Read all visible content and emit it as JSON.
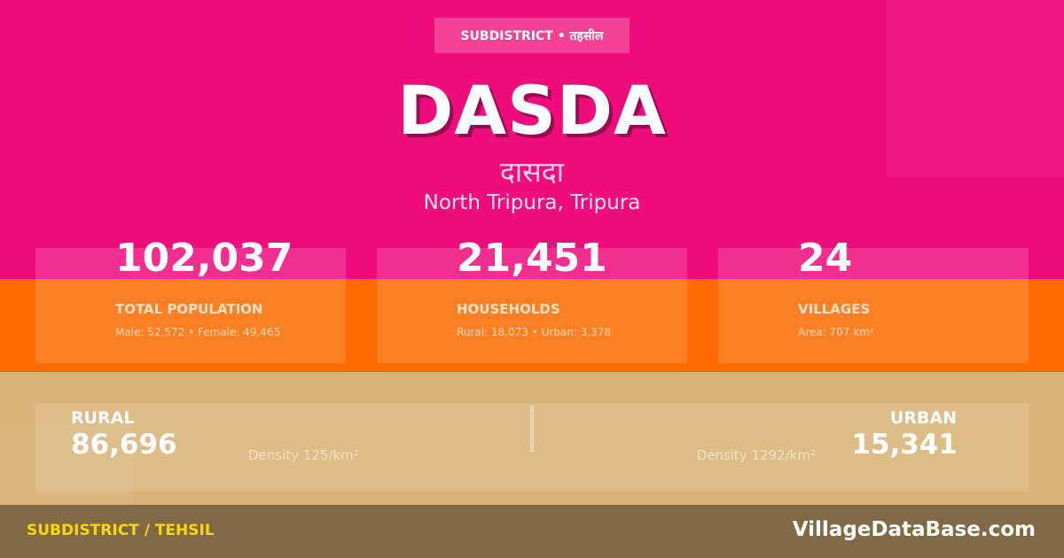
{
  "badge": "SUBDISTRICT • तहसील",
  "name": "DASDA",
  "name_hindi": "दासदा",
  "location": "North Tripura, Tripura",
  "stats": [
    {
      "value": "102,037",
      "label": "TOTAL POPULATION",
      "sub": "Male: 52,572 • Female: 49,465"
    },
    {
      "value": "21,451",
      "label": "HOUSEHOLDS",
      "sub": "Rural: 18,073 • Urban: 3,378"
    },
    {
      "value": "24",
      "label": "VILLAGES",
      "sub": "Area: 707 km²"
    }
  ],
  "rural": {
    "label": "RURAL",
    "value": "86,696",
    "density": "Density 125/km²"
  },
  "urban": {
    "label": "URBAN",
    "value": "15,341",
    "density": "Density 1292/km²"
  },
  "footer": {
    "type": "SUBDISTRICT / TEHSIL",
    "site": "VillageDataBase.com"
  },
  "colors": {
    "pink": "#f00c7c",
    "orange": "#ff6a00",
    "tan": "#d9b277",
    "footer": "#806a46",
    "accent": "#ffd60a"
  }
}
